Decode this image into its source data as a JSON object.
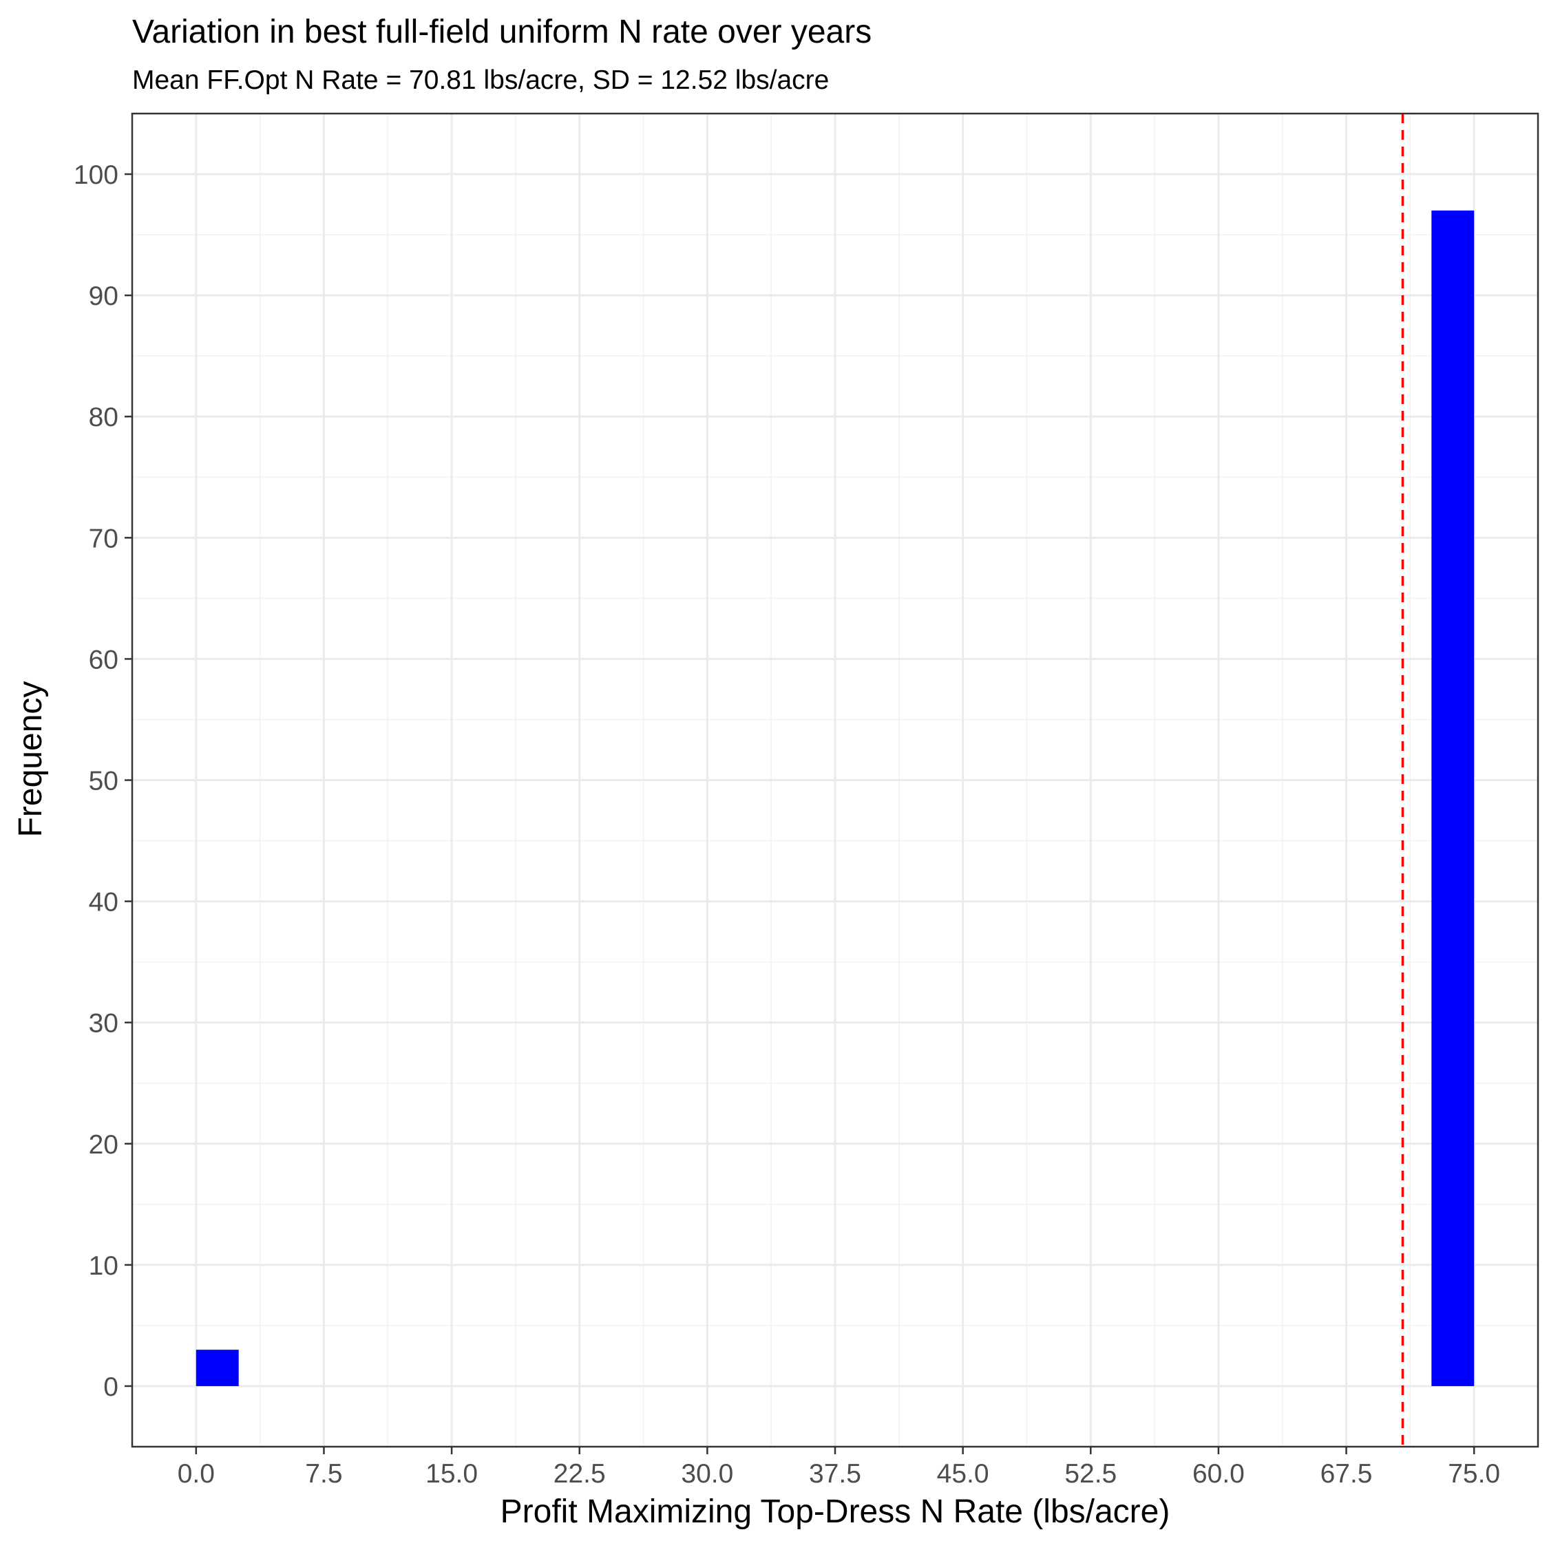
{
  "chart_data": {
    "type": "bar",
    "title": "Variation in best full-field uniform N rate over years",
    "subtitle": "Mean FF.Opt N Rate = 70.81 lbs/acre, SD = 12.52 lbs/acre",
    "xlabel": "Profit Maximizing Top-Dress N Rate (lbs/acre)",
    "ylabel": "Frequency",
    "xlim": [
      -3.75,
      78.75
    ],
    "ylim": [
      -5,
      105
    ],
    "x_ticks": [
      0,
      7.5,
      15,
      22.5,
      30,
      37.5,
      45,
      52.5,
      60,
      67.5,
      75
    ],
    "x_tick_labels": [
      "0.0",
      "7.5",
      "15.0",
      "22.5",
      "30.0",
      "37.5",
      "45.0",
      "52.5",
      "60.0",
      "67.5",
      "75.0"
    ],
    "y_ticks": [
      0,
      10,
      20,
      30,
      40,
      50,
      60,
      70,
      80,
      90,
      100
    ],
    "y_tick_labels": [
      "0",
      "10",
      "20",
      "30",
      "40",
      "50",
      "60",
      "70",
      "80",
      "90",
      "100"
    ],
    "bin_width": 2.5,
    "bars": [
      {
        "x_start": 0,
        "x_end": 2.5,
        "count": 3
      },
      {
        "x_start": 72.5,
        "x_end": 75,
        "count": 97
      }
    ],
    "mean_line": {
      "x": 70.81
    },
    "grid": true,
    "legend": "none"
  },
  "colors": {
    "bar_fill": "#0000ff",
    "mean_line": "#ff0000",
    "grid_major": "#ebebeb",
    "grid_minor": "#f2f2f2",
    "panel_border": "#333333",
    "tick_text": "#4d4d4d"
  }
}
